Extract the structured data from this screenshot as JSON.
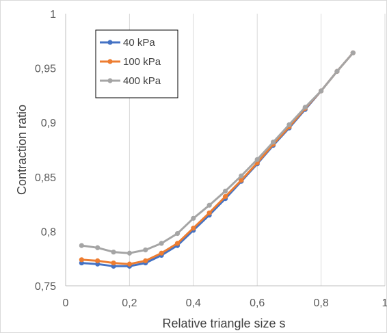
{
  "chart_data": {
    "type": "line",
    "xlabel": "Relative triangle size s",
    "ylabel": "Contraction ratio",
    "xlim": [
      0,
      1
    ],
    "ylim": [
      0.75,
      1
    ],
    "x_ticks": [
      "0",
      "0,2",
      "0,4",
      "0,6",
      "0,8",
      "1"
    ],
    "y_ticks": [
      "0,75",
      "0,8",
      "0,85",
      "0,9",
      "0,95",
      "1"
    ],
    "x_tick_values": [
      0,
      0.2,
      0.4,
      0.6,
      0.8,
      1
    ],
    "y_tick_values": [
      0.75,
      0.8,
      0.85,
      0.9,
      0.95,
      1
    ],
    "grid": "vertical",
    "legend": "top-left",
    "x": [
      0.05,
      0.1,
      0.15,
      0.2,
      0.25,
      0.3,
      0.35,
      0.4,
      0.45,
      0.5,
      0.55,
      0.6,
      0.65,
      0.7,
      0.75,
      0.8,
      0.85,
      0.9
    ],
    "series": [
      {
        "name": "40 kPa",
        "color": "#4472c4",
        "values": [
          0.771,
          0.77,
          0.768,
          0.768,
          0.771,
          0.778,
          0.787,
          0.801,
          0.815,
          0.83,
          0.846,
          0.862,
          0.879,
          0.895,
          0.912,
          0.929,
          0.947,
          0.964
        ]
      },
      {
        "name": "100 kPa",
        "color": "#ed7d31",
        "values": [
          0.774,
          0.773,
          0.771,
          0.77,
          0.773,
          0.78,
          0.789,
          0.803,
          0.817,
          0.832,
          0.847,
          0.863,
          0.88,
          0.896,
          0.913,
          0.929,
          0.947,
          0.964
        ]
      },
      {
        "name": "400 kPa",
        "color": "#a5a5a5",
        "values": [
          0.787,
          0.785,
          0.781,
          0.78,
          0.783,
          0.789,
          0.798,
          0.812,
          0.824,
          0.837,
          0.851,
          0.866,
          0.882,
          0.898,
          0.914,
          0.929,
          0.947,
          0.964
        ]
      }
    ]
  }
}
